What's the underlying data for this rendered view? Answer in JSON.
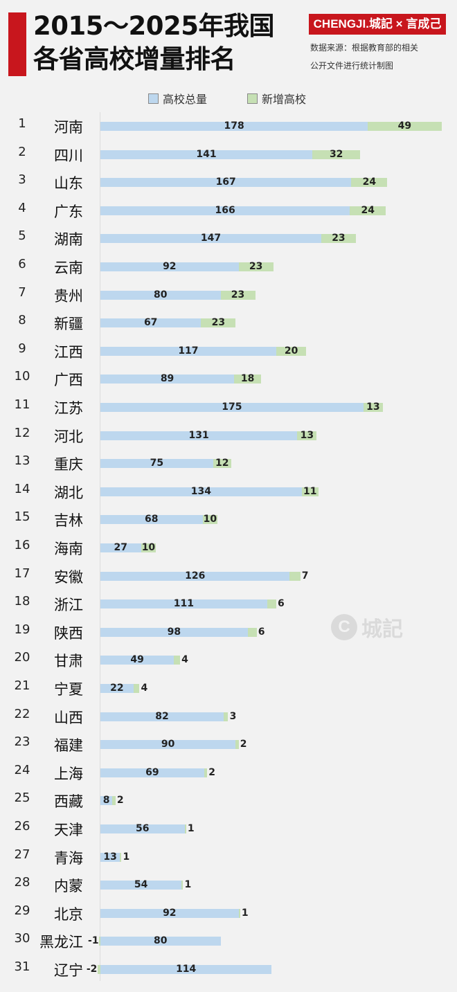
{
  "title": {
    "line1": "2015～2025年我国",
    "line2": "各省高校增量排名"
  },
  "brand": "CHENGJI.城記 × 言成己",
  "source": {
    "line1": "数据来源：根据教育部的相关",
    "line2": "公开文件进行统计制图"
  },
  "watermark": "城記",
  "legend": [
    {
      "label": "高校总量",
      "color": "#bdd7ee"
    },
    {
      "label": "新增高校",
      "color": "#c6e0b4"
    }
  ],
  "chart_data": {
    "type": "bar",
    "orientation": "horizontal",
    "stacked": true,
    "title": "2015～2025年我国各省高校增量排名",
    "ranks": [
      "1",
      "2",
      "3",
      "4",
      "5",
      "6",
      "7",
      "8",
      "9",
      "10",
      "11",
      "12",
      "13",
      "14",
      "15",
      "16",
      "17",
      "18",
      "19",
      "20",
      "21",
      "22",
      "23",
      "24",
      "25",
      "26",
      "27",
      "28",
      "29",
      "30",
      "31"
    ],
    "categories": [
      "河南",
      "四川",
      "山东",
      "广东",
      "湖南",
      "云南",
      "贵州",
      "新疆",
      "江西",
      "广西",
      "江苏",
      "河北",
      "重庆",
      "湖北",
      "吉林",
      "海南",
      "安徽",
      "浙江",
      "陕西",
      "甘肃",
      "宁夏",
      "山西",
      "福建",
      "上海",
      "西藏",
      "天津",
      "青海",
      "内蒙",
      "北京",
      "黑龙江",
      "辽宁"
    ],
    "series": [
      {
        "name": "高校总量",
        "color": "#bdd7ee",
        "values": [
          178,
          141,
          167,
          166,
          147,
          92,
          80,
          67,
          117,
          89,
          175,
          131,
          75,
          134,
          68,
          27,
          126,
          111,
          98,
          49,
          22,
          82,
          90,
          69,
          8,
          56,
          13,
          54,
          92,
          80,
          114
        ]
      },
      {
        "name": "新增高校",
        "color": "#c6e0b4",
        "values": [
          49,
          32,
          24,
          24,
          23,
          23,
          23,
          23,
          20,
          18,
          13,
          13,
          12,
          11,
          10,
          10,
          7,
          6,
          6,
          4,
          4,
          3,
          2,
          2,
          2,
          1,
          1,
          1,
          1,
          -1,
          -2
        ]
      }
    ],
    "xlim": [
      0,
      228
    ],
    "grid": false,
    "legend_position": "top"
  }
}
